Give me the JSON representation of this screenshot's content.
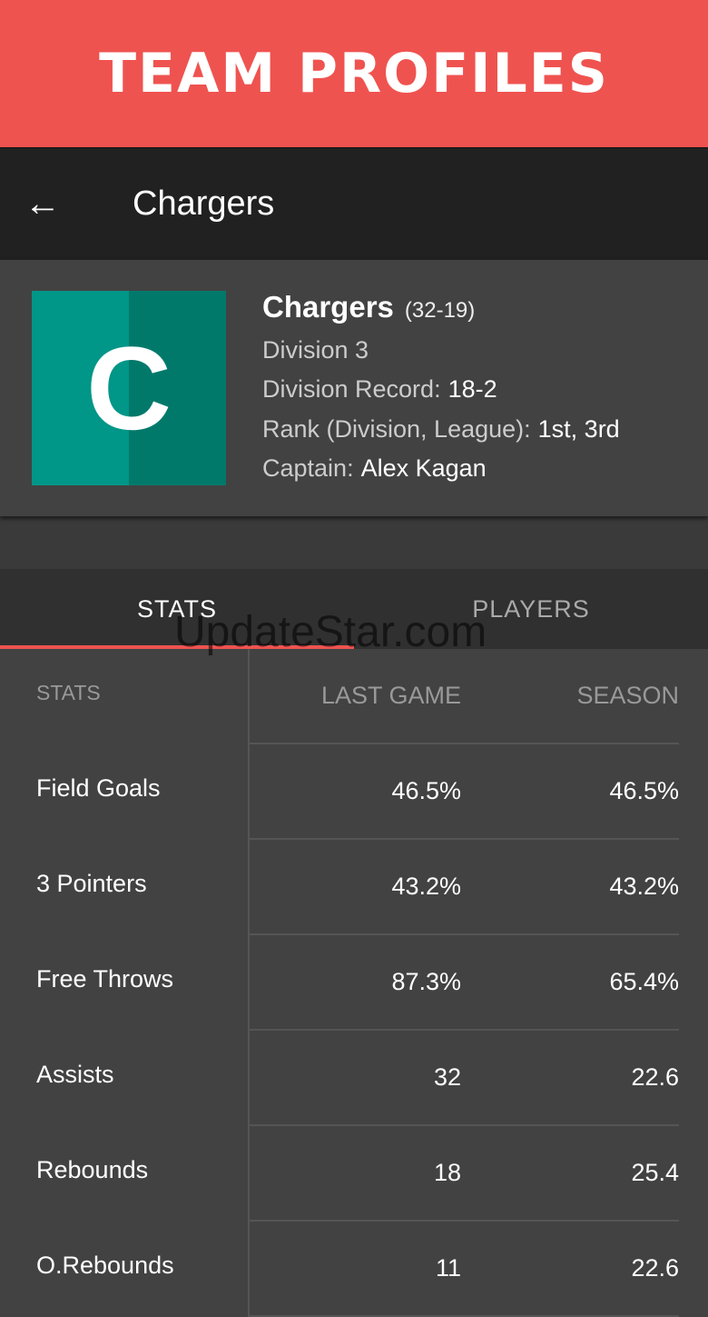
{
  "banner": {
    "title": "TEAM PROFILES"
  },
  "appbar": {
    "title": "Chargers",
    "back_icon": "arrow-left-icon"
  },
  "team": {
    "logo_letter": "C",
    "name": "Chargers",
    "record": "(32-19)",
    "division": "Division 3",
    "division_record_label": "Division Record:",
    "division_record": "18-2",
    "rank_label": "Rank (Division, League):",
    "rank": "1st, 3rd",
    "captain_label": "Captain:",
    "captain": "Alex Kagan",
    "logo_colors": [
      "#009688",
      "#00796b"
    ]
  },
  "tabs": [
    {
      "label": "STATS",
      "active": true
    },
    {
      "label": "PLAYERS",
      "active": false
    }
  ],
  "watermark": "UpdateStar.com",
  "stats": {
    "headers": [
      "STATS",
      "LAST GAME",
      "SEASON"
    ],
    "rows": [
      {
        "name": "Field Goals",
        "last": "46.5%",
        "season": "46.5%"
      },
      {
        "name": "3 Pointers",
        "last": "43.2%",
        "season": "43.2%"
      },
      {
        "name": "Free Throws",
        "last": "87.3%",
        "season": "65.4%"
      },
      {
        "name": "Assists",
        "last": "32",
        "season": "22.6"
      },
      {
        "name": "Rebounds",
        "last": "18",
        "season": "25.4"
      },
      {
        "name": "O.Rebounds",
        "last": "11",
        "season": "22.6"
      }
    ]
  },
  "colors": {
    "accent": "#ef5350",
    "appbar": "#212121",
    "background": "#424242"
  }
}
